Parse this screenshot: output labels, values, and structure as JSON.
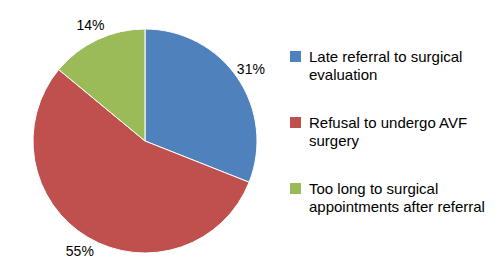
{
  "chart_data": {
    "type": "pie",
    "categories": [
      "Late referral to surgical evaluation",
      "Refusal to undergo AVF surgery",
      "Too long to surgical appointments after referral"
    ],
    "values": [
      31,
      55,
      14
    ],
    "value_labels": [
      "31%",
      "55%",
      "14%"
    ],
    "colors": [
      "#4f81bd",
      "#c0504d",
      "#9bbb59"
    ],
    "data_labels": true,
    "legend": "right"
  }
}
